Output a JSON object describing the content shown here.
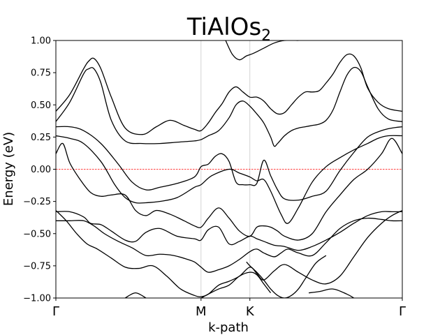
{
  "chart_data": {
    "type": "line",
    "title": "TiAlOs",
    "title_subscript": "2",
    "xlabel": "k-path",
    "ylabel": "Energy (eV)",
    "ylim": [
      -1.0,
      1.0
    ],
    "xlim": [
      0,
      1
    ],
    "yticks": [
      {
        "value": 1.0,
        "label": "1.00"
      },
      {
        "value": 0.75,
        "label": "0.75"
      },
      {
        "value": 0.5,
        "label": "0.50"
      },
      {
        "value": 0.25,
        "label": "0.25"
      },
      {
        "value": 0.0,
        "label": "0.00"
      },
      {
        "value": -0.25,
        "label": "−0.25"
      },
      {
        "value": -0.5,
        "label": "−0.50"
      },
      {
        "value": -0.75,
        "label": "−0.75"
      },
      {
        "value": -1.0,
        "label": "−1.00"
      }
    ],
    "kpoints": [
      {
        "label": "Γ",
        "x": 0.0
      },
      {
        "label": "M",
        "x": 0.419
      },
      {
        "label": "K",
        "x": 0.56
      },
      {
        "label": "Γ",
        "x": 1.0
      }
    ],
    "fermi_level": 0.0,
    "colors": {
      "bands": "#000000",
      "fermi": "#ff0000",
      "kline": "#c8c8c8"
    },
    "series": [
      {
        "x": [
          0.0,
          0.04,
          0.08,
          0.095,
          0.11,
          0.13,
          0.16,
          0.2,
          0.25,
          0.29,
          0.33,
          0.37,
          0.4,
          0.419,
          0.44,
          0.46,
          0.48,
          0.5,
          0.52,
          0.54,
          0.56,
          0.58,
          0.6,
          0.62,
          0.64,
          0.66,
          0.68,
          0.7,
          0.72,
          0.74,
          0.76,
          0.78,
          0.8,
          0.82,
          0.84,
          0.86,
          0.88,
          0.9,
          0.93,
          0.96,
          1.0
        ],
        "y": [
          0.45,
          0.58,
          0.78,
          0.84,
          0.86,
          0.78,
          0.56,
          0.32,
          0.27,
          0.33,
          0.38,
          0.34,
          0.31,
          0.3,
          0.36,
          0.44,
          0.51,
          0.6,
          0.64,
          0.6,
          0.56,
          0.56,
          0.53,
          0.47,
          0.43,
          0.44,
          0.5,
          0.56,
          0.6,
          0.6,
          0.61,
          0.67,
          0.74,
          0.83,
          0.89,
          0.88,
          0.79,
          0.63,
          0.52,
          0.47,
          0.45
        ]
      },
      {
        "x": [
          0.0,
          0.04,
          0.08,
          0.095,
          0.11,
          0.13,
          0.16,
          0.2,
          0.25,
          0.3,
          0.35,
          0.4,
          0.419,
          0.44,
          0.47,
          0.5,
          0.52,
          0.54,
          0.56,
          0.58,
          0.6,
          0.62,
          0.63,
          0.64,
          0.66,
          0.68,
          0.7,
          0.72,
          0.74,
          0.76,
          0.78,
          0.8,
          0.82,
          0.84,
          0.86,
          0.88,
          0.9,
          0.93,
          0.96,
          1.0
        ],
        "y": [
          0.37,
          0.52,
          0.74,
          0.78,
          0.78,
          0.67,
          0.38,
          0.22,
          0.2,
          0.2,
          0.21,
          0.22,
          0.23,
          0.26,
          0.3,
          0.4,
          0.5,
          0.53,
          0.49,
          0.43,
          0.36,
          0.25,
          0.18,
          0.2,
          0.26,
          0.3,
          0.32,
          0.33,
          0.34,
          0.35,
          0.38,
          0.46,
          0.6,
          0.73,
          0.79,
          0.76,
          0.64,
          0.47,
          0.39,
          0.37
        ]
      },
      {
        "x": [
          0.0,
          0.04,
          0.08,
          0.13,
          0.18,
          0.22,
          0.26,
          0.3,
          0.35,
          0.4,
          0.419,
          0.44,
          0.46,
          0.48,
          0.5,
          0.52,
          0.54,
          0.56,
          0.58,
          0.6,
          0.62,
          0.64,
          0.66,
          0.7,
          0.74,
          0.78,
          0.82,
          0.86,
          0.9,
          0.94,
          0.97,
          1.0
        ],
        "y": [
          0.33,
          0.33,
          0.3,
          0.2,
          0.04,
          -0.1,
          -0.16,
          -0.14,
          -0.11,
          -0.06,
          0.02,
          0.04,
          0.1,
          0.12,
          0.06,
          -0.1,
          -0.12,
          -0.12,
          -0.11,
          0.07,
          -0.05,
          -0.16,
          -0.23,
          -0.24,
          -0.21,
          -0.17,
          -0.01,
          0.13,
          0.25,
          0.3,
          0.32,
          0.33
        ]
      },
      {
        "x": [
          0.0,
          0.04,
          0.08,
          0.13,
          0.17,
          0.2,
          0.23,
          0.26,
          0.3,
          0.35,
          0.4,
          0.419,
          0.45,
          0.5,
          0.53,
          0.56,
          0.58,
          0.6,
          0.62,
          0.65,
          0.67,
          0.7,
          0.74,
          0.78,
          0.82,
          0.86,
          0.9,
          0.93,
          0.96,
          1.0
        ],
        "y": [
          0.26,
          0.24,
          0.2,
          0.06,
          -0.12,
          -0.22,
          -0.26,
          -0.26,
          -0.25,
          -0.22,
          -0.14,
          -0.12,
          -0.05,
          0.0,
          -0.03,
          -0.06,
          -0.09,
          -0.08,
          -0.17,
          -0.35,
          -0.42,
          -0.3,
          -0.1,
          0.02,
          0.09,
          0.15,
          0.2,
          0.24,
          0.26,
          0.26
        ]
      },
      {
        "x": [
          0.0,
          0.02,
          0.04,
          0.07,
          0.1,
          0.13,
          0.16,
          0.2,
          0.23,
          0.26,
          0.29,
          0.33,
          0.37,
          0.4,
          0.419,
          0.44,
          0.47,
          0.5,
          0.53,
          0.56,
          0.58,
          0.6,
          0.62,
          0.64,
          0.66,
          0.7,
          0.74,
          0.78,
          0.82,
          0.86,
          0.9,
          0.94,
          0.97,
          1.0
        ],
        "y": [
          0.12,
          0.2,
          0.05,
          -0.08,
          -0.18,
          -0.21,
          -0.2,
          -0.2,
          -0.32,
          -0.36,
          -0.32,
          -0.35,
          -0.4,
          -0.44,
          -0.45,
          -0.38,
          -0.3,
          -0.38,
          -0.48,
          -0.52,
          -0.45,
          -0.44,
          -0.45,
          -0.48,
          -0.52,
          -0.55,
          -0.5,
          -0.33,
          -0.2,
          -0.08,
          0.0,
          0.12,
          0.24,
          0.12
        ]
      },
      {
        "x": [
          0.0,
          0.04,
          0.08,
          0.1,
          0.13,
          0.16,
          0.2,
          0.23,
          0.26,
          0.3,
          0.35,
          0.4,
          0.419,
          0.44,
          0.47,
          0.5,
          0.53,
          0.56,
          0.58,
          0.6,
          0.63,
          0.66,
          0.7,
          0.74,
          0.78,
          0.82,
          0.86,
          0.9,
          0.94,
          0.97,
          1.0
        ],
        "y": [
          -0.33,
          -0.33,
          -0.37,
          -0.42,
          -0.43,
          -0.48,
          -0.55,
          -0.56,
          -0.49,
          -0.46,
          -0.52,
          -0.54,
          -0.55,
          -0.47,
          -0.45,
          -0.58,
          -0.56,
          -0.52,
          -0.54,
          -0.56,
          -0.59,
          -0.6,
          -0.63,
          -0.6,
          -0.55,
          -0.49,
          -0.42,
          -0.36,
          -0.33,
          -0.33,
          -0.33
        ]
      },
      {
        "x": [
          0.0,
          0.04,
          0.08,
          0.11,
          0.14,
          0.18,
          0.22,
          0.26,
          0.3,
          0.34,
          0.38,
          0.4,
          0.419,
          0.44,
          0.47,
          0.5,
          0.53,
          0.56,
          0.58,
          0.6,
          0.63,
          0.65,
          0.67,
          0.7,
          0.74,
          0.78,
          0.82,
          0.86,
          0.9,
          0.94,
          0.97,
          1.0
        ],
        "y": [
          -0.4,
          -0.4,
          -0.4,
          -0.44,
          -0.5,
          -0.56,
          -0.61,
          -0.67,
          -0.66,
          -0.67,
          -0.7,
          -0.72,
          -0.76,
          -0.8,
          -0.78,
          -0.75,
          -0.7,
          -0.64,
          -0.62,
          -0.65,
          -0.68,
          -0.65,
          -0.62,
          -0.65,
          -0.67,
          -0.57,
          -0.46,
          -0.4,
          -0.38,
          -0.39,
          -0.4,
          -0.4
        ]
      },
      {
        "x": [
          0.0,
          0.03,
          0.06,
          0.09,
          0.12,
          0.16,
          0.2,
          0.24,
          0.28,
          0.32,
          0.36,
          0.4,
          0.419,
          0.44,
          0.47,
          0.5,
          0.53,
          0.56,
          0.58,
          0.6,
          0.63,
          0.66,
          0.7,
          0.74,
          0.78,
          0.82,
          0.86,
          0.9,
          0.94,
          0.97,
          1.0
        ],
        "y": [
          -0.32,
          -0.4,
          -0.5,
          -0.58,
          -0.62,
          -0.69,
          -0.76,
          -0.77,
          -0.75,
          -0.83,
          -0.93,
          -0.98,
          -0.99,
          -0.97,
          -0.9,
          -0.87,
          -0.83,
          -0.76,
          -0.81,
          -0.86,
          -0.79,
          -0.74,
          -0.8,
          -0.86,
          -0.89,
          -0.83,
          -0.68,
          -0.53,
          -0.42,
          -0.36,
          -0.32
        ]
      },
      {
        "x": [
          0.55,
          0.56,
          0.58,
          0.6,
          0.62,
          0.64,
          0.66,
          0.68,
          0.7,
          0.72,
          0.75,
          0.78
        ],
        "y": [
          -0.72,
          -0.75,
          -0.8,
          -0.86,
          -0.93,
          -0.98,
          -1.0,
          -0.98,
          -0.93,
          -0.85,
          -0.73,
          -0.67
        ]
      },
      {
        "x": [
          0.42,
          0.44,
          0.47,
          0.5,
          0.53,
          0.56,
          0.58,
          0.6,
          0.62
        ],
        "y": [
          -1.0,
          -0.97,
          -0.93,
          -0.9,
          -0.83,
          -0.8,
          -0.82,
          -0.89,
          -0.96
        ]
      },
      {
        "x": [
          0.2,
          0.23,
          0.26
        ],
        "y": [
          -1.0,
          -0.96,
          -1.0
        ]
      },
      {
        "x": [
          0.73,
          0.76,
          0.8,
          0.84,
          0.86
        ],
        "y": [
          -0.96,
          -0.95,
          -0.93,
          -0.97,
          -1.0
        ]
      },
      {
        "x": [
          0.49,
          0.51,
          0.53,
          0.55,
          0.57,
          0.6,
          0.63,
          0.66,
          0.7
        ],
        "y": [
          1.0,
          0.89,
          0.85,
          0.88,
          0.9,
          0.94,
          0.98,
          1.0,
          1.0
        ]
      }
    ]
  }
}
